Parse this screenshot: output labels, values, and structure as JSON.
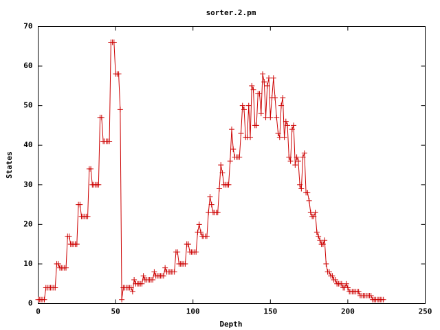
{
  "chart_data": {
    "type": "line",
    "title": "sorter.2.pm",
    "x_label": "Depth",
    "y_label": "States",
    "color": "#cc0000",
    "markers": true,
    "grid": false,
    "xlim": [
      0,
      250
    ],
    "xticks": [
      0,
      50,
      100,
      150,
      200,
      250
    ],
    "ylim": [
      0,
      70
    ],
    "yticks": [
      0,
      10,
      20,
      30,
      40,
      50,
      60,
      70
    ],
    "x": [
      0,
      1,
      2,
      3,
      4,
      5,
      6,
      7,
      8,
      9,
      10,
      11,
      12,
      13,
      14,
      15,
      16,
      17,
      18,
      19,
      20,
      21,
      22,
      23,
      24,
      25,
      26,
      27,
      28,
      29,
      30,
      31,
      32,
      33,
      34,
      35,
      36,
      37,
      38,
      39,
      40,
      41,
      42,
      43,
      44,
      45,
      46,
      47,
      48,
      49,
      50,
      51,
      52,
      53,
      54,
      55,
      56,
      57,
      58,
      59,
      60,
      61,
      62,
      63,
      64,
      65,
      66,
      67,
      68,
      69,
      70,
      71,
      72,
      73,
      74,
      75,
      76,
      77,
      78,
      79,
      80,
      81,
      82,
      83,
      84,
      85,
      86,
      87,
      88,
      89,
      90,
      91,
      92,
      93,
      94,
      95,
      96,
      97,
      98,
      99,
      100,
      101,
      102,
      103,
      104,
      105,
      106,
      107,
      108,
      109,
      110,
      111,
      112,
      113,
      114,
      115,
      116,
      117,
      118,
      119,
      120,
      121,
      122,
      123,
      124,
      125,
      126,
      127,
      128,
      129,
      130,
      131,
      132,
      133,
      134,
      135,
      136,
      137,
      138,
      139,
      140,
      141,
      142,
      143,
      144,
      145,
      146,
      147,
      148,
      149,
      150,
      151,
      152,
      153,
      154,
      155,
      156,
      157,
      158,
      159,
      160,
      161,
      162,
      163,
      164,
      165,
      166,
      167,
      168,
      169,
      170,
      171,
      172,
      173,
      174,
      175,
      176,
      177,
      178,
      179,
      180,
      181,
      182,
      183,
      184,
      185,
      186,
      187,
      188,
      189,
      190,
      191,
      192,
      193,
      194,
      195,
      196,
      197,
      198,
      199,
      200,
      201,
      202,
      203,
      204,
      205,
      206,
      207,
      208,
      209,
      210,
      211,
      212,
      213,
      214,
      215,
      216,
      217,
      218,
      219,
      220,
      221,
      222,
      223
    ],
    "values": [
      1,
      1,
      1,
      1,
      1,
      4,
      4,
      4,
      4,
      4,
      4,
      4,
      10,
      10,
      9,
      9,
      9,
      9,
      9,
      17,
      17,
      15,
      15,
      15,
      15,
      15,
      25,
      25,
      22,
      22,
      22,
      22,
      22,
      34,
      34,
      30,
      30,
      30,
      30,
      30,
      47,
      47,
      41,
      41,
      41,
      41,
      41,
      66,
      66,
      66,
      58,
      58,
      58,
      49,
      1,
      4,
      4,
      4,
      4,
      4,
      4,
      3,
      6,
      5,
      5,
      5,
      5,
      5,
      7,
      6,
      6,
      6,
      6,
      6,
      6,
      8,
      7,
      7,
      7,
      7,
      7,
      7,
      9,
      8,
      8,
      8,
      8,
      8,
      8,
      13,
      13,
      10,
      10,
      10,
      10,
      10,
      15,
      15,
      13,
      13,
      13,
      13,
      13,
      18,
      20,
      18,
      17,
      17,
      17,
      17,
      23,
      27,
      25,
      23,
      23,
      23,
      23,
      29,
      35,
      33,
      30,
      30,
      30,
      30,
      36,
      44,
      39,
      37,
      37,
      37,
      37,
      43,
      50,
      49,
      42,
      42,
      50,
      42,
      55,
      54,
      45,
      45,
      53,
      53,
      48,
      58,
      56,
      47,
      55,
      57,
      47,
      52,
      57,
      52,
      47,
      43,
      42,
      50,
      52,
      42,
      46,
      45,
      37,
      36,
      44,
      45,
      35,
      37,
      36,
      30,
      29,
      37,
      38,
      28,
      28,
      26,
      23,
      22,
      22,
      23,
      18,
      17,
      16,
      15,
      15,
      16,
      10,
      8,
      8,
      7,
      7,
      6,
      6,
      5,
      5,
      5,
      5,
      4,
      4,
      5,
      4,
      3,
      3,
      3,
      3,
      3,
      3,
      3,
      2,
      2,
      2,
      2,
      2,
      2,
      2,
      2,
      1,
      1,
      1,
      1,
      1,
      1,
      1,
      1
    ]
  }
}
